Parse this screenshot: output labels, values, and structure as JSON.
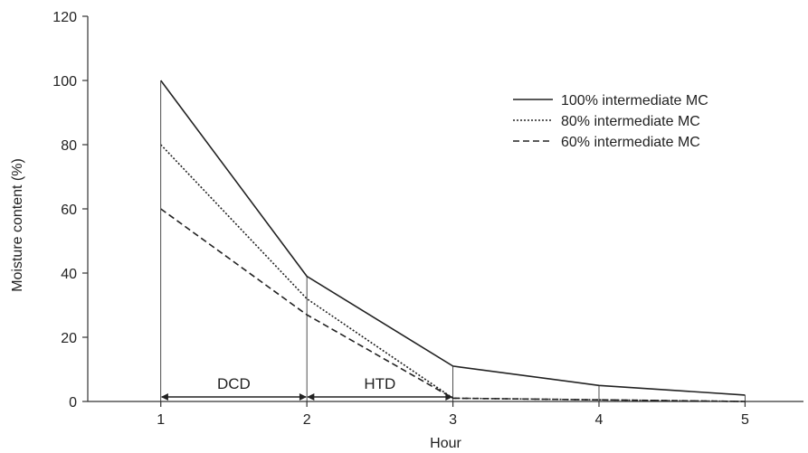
{
  "chart_data": {
    "type": "line",
    "title": "",
    "xlabel": "Hour",
    "ylabel": "Moisture content (%)",
    "xlim": [
      0.5,
      5.4
    ],
    "ylim": [
      0,
      120
    ],
    "xticks": [
      1,
      2,
      3,
      4,
      5
    ],
    "yticks": [
      0,
      20,
      40,
      60,
      80,
      100,
      120
    ],
    "grid": false,
    "legend_position": "top-right",
    "x": [
      1,
      2,
      3,
      4,
      5
    ],
    "series": [
      {
        "name": "100% intermediate MC",
        "style": "solid",
        "values": [
          100,
          39,
          11,
          5,
          2
        ]
      },
      {
        "name": "80% intermediate MC",
        "style": "dotted",
        "values": [
          80,
          32,
          1,
          0.5,
          0
        ]
      },
      {
        "name": "60% intermediate MC",
        "style": "dashed",
        "values": [
          60,
          27,
          1,
          0.5,
          0
        ]
      }
    ],
    "annotations": [
      {
        "label": "DCD",
        "from_x": 1,
        "to_x": 2
      },
      {
        "label": "HTD",
        "from_x": 2,
        "to_x": 3
      }
    ],
    "colors": {
      "line": "#222222",
      "axis": "#333333"
    }
  }
}
